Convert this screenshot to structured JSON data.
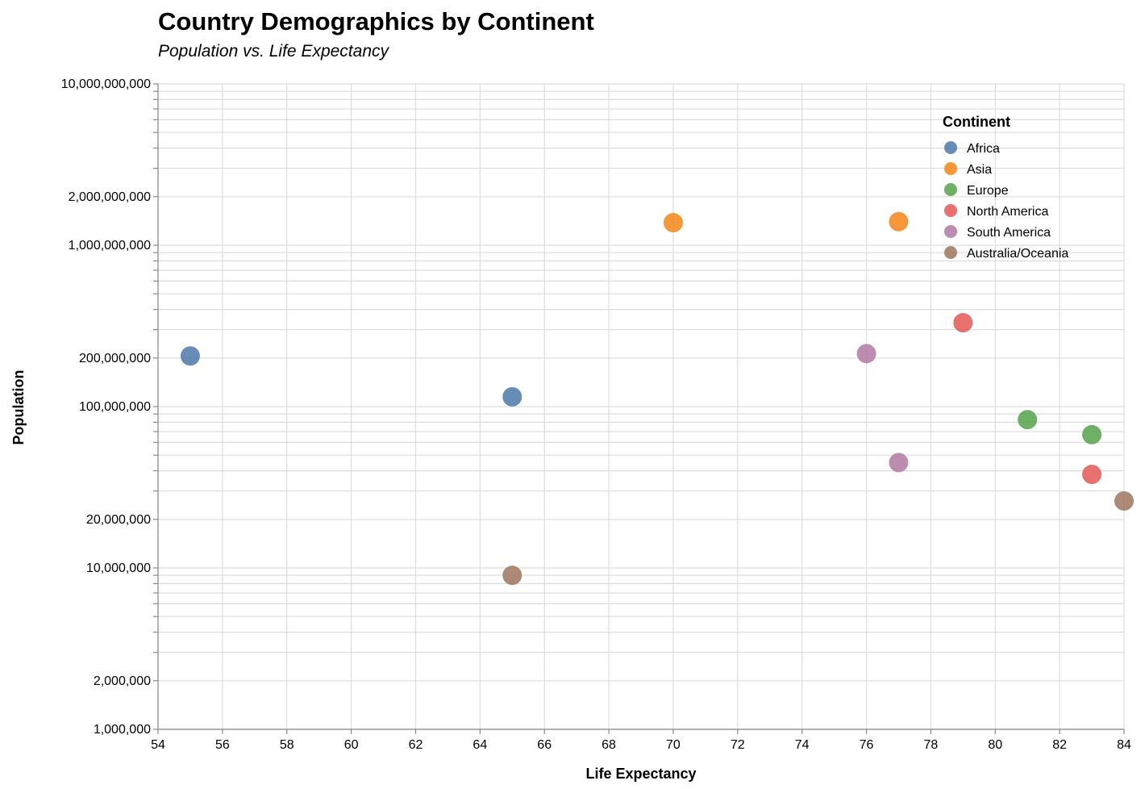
{
  "chart_data": {
    "type": "scatter",
    "title": "Country Demographics by Continent",
    "subtitle": "Population vs. Life Expectancy",
    "xlabel": "Life Expectancy",
    "ylabel": "Population",
    "xlim": [
      54,
      84
    ],
    "ylim": [
      1000000,
      10000000000
    ],
    "y_scale": "log",
    "grid": true,
    "x_ticks": [
      54,
      56,
      58,
      60,
      62,
      64,
      66,
      68,
      70,
      72,
      74,
      76,
      78,
      80,
      82,
      84
    ],
    "y_tick_labels": [
      {
        "value": 1000000,
        "label": "1,000,000"
      },
      {
        "value": 2000000,
        "label": "2,000,000"
      },
      {
        "value": 10000000,
        "label": "10,000,000"
      },
      {
        "value": 20000000,
        "label": "20,000,000"
      },
      {
        "value": 100000000,
        "label": "100,000,000"
      },
      {
        "value": 200000000,
        "label": "200,000,000"
      },
      {
        "value": 1000000000,
        "label": "1,000,000,000"
      },
      {
        "value": 2000000000,
        "label": "2,000,000,000"
      },
      {
        "value": 10000000000,
        "label": "10,000,000,000"
      }
    ],
    "legend": {
      "title": "Continent",
      "placement": "top-right"
    },
    "series": [
      {
        "name": "Africa",
        "color": "#4c78a8",
        "points": [
          {
            "x": 55,
            "y": 206000000
          },
          {
            "x": 65,
            "y": 115000000
          }
        ]
      },
      {
        "name": "Asia",
        "color": "#f58518",
        "points": [
          {
            "x": 70,
            "y": 1380000000
          },
          {
            "x": 77,
            "y": 1400000000
          }
        ]
      },
      {
        "name": "Europe",
        "color": "#54a24b",
        "points": [
          {
            "x": 81,
            "y": 83000000
          },
          {
            "x": 83,
            "y": 67000000
          }
        ]
      },
      {
        "name": "North America",
        "color": "#e45756",
        "points": [
          {
            "x": 79,
            "y": 331000000
          },
          {
            "x": 83,
            "y": 38000000
          }
        ]
      },
      {
        "name": "South America",
        "color": "#b279a2",
        "points": [
          {
            "x": 76,
            "y": 213000000
          },
          {
            "x": 77,
            "y": 45000000
          }
        ]
      },
      {
        "name": "Australia/Oceania",
        "color": "#9d755d",
        "points": [
          {
            "x": 84,
            "y": 26000000
          },
          {
            "x": 65,
            "y": 9000000
          }
        ]
      }
    ]
  }
}
